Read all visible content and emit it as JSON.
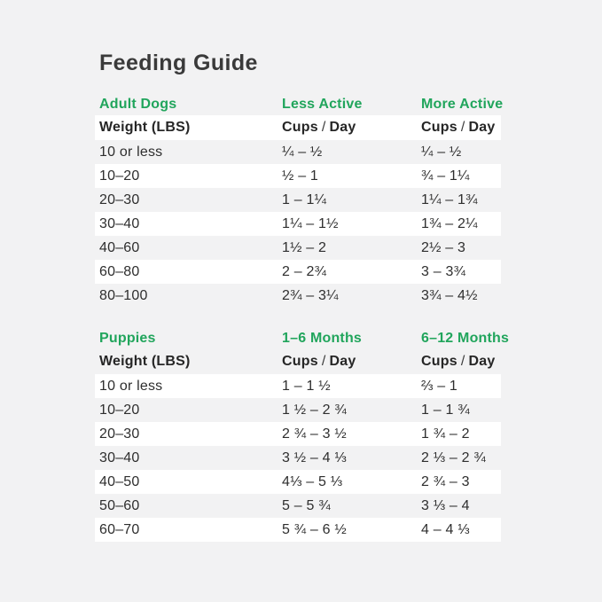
{
  "page": {
    "title": "Feeding Guide"
  },
  "colors": {
    "accent_green": "#21a55c",
    "title_text": "#3a3a3a",
    "body_text": "#2e2e2e",
    "page_bg": "#f2f2f3",
    "stripe_white": "#ffffff"
  },
  "tables": [
    {
      "category": "Adult Dogs",
      "col2_header": "Less Active",
      "col3_header": "More Active",
      "subheader": {
        "col1": "Weight (LBS)",
        "cups": "Cups",
        "slash": "/",
        "day": "Day"
      },
      "rows": [
        {
          "weight": "10 or less",
          "col2": "¼ – ½",
          "col3": "¼ – ½"
        },
        {
          "weight": "10–20",
          "col2": "½ – 1",
          "col3": "¾ – 1¼"
        },
        {
          "weight": "20–30",
          "col2": "1 – 1¼",
          "col3": "1¼ – 1¾"
        },
        {
          "weight": "30–40",
          "col2": "1¼ – 1½",
          "col3": "1¾ – 2¼"
        },
        {
          "weight": "40–60",
          "col2": "1½ – 2",
          "col3": "2½ – 3"
        },
        {
          "weight": "60–80",
          "col2": "2 – 2¾",
          "col3": "3 – 3¾"
        },
        {
          "weight": "80–100",
          "col2": "2¾ – 3¼",
          "col3": "3¾ – 4½"
        }
      ]
    },
    {
      "category": "Puppies",
      "col2_header": "1–6 Months",
      "col3_header": "6–12 Months",
      "subheader": {
        "col1": "Weight (LBS)",
        "cups": "Cups",
        "slash": "/",
        "day": "Day"
      },
      "rows": [
        {
          "weight": "10 or less",
          "col2": "1 – 1 ½",
          "col3": "⅔ – 1"
        },
        {
          "weight": "10–20",
          "col2": "1 ½ – 2 ¾",
          "col3": "1 – 1 ¾"
        },
        {
          "weight": "20–30",
          "col2": "2 ¾ – 3 ½",
          "col3": "1 ¾ – 2"
        },
        {
          "weight": "30–40",
          "col2": "3 ½ – 4 ⅓",
          "col3": "2 ⅓ – 2 ¾"
        },
        {
          "weight": "40–50",
          "col2": "4⅓ – 5 ⅓",
          "col3": "2 ¾ – 3"
        },
        {
          "weight": "50–60",
          "col2": "5 – 5 ¾",
          "col3": "3 ⅓ – 4"
        },
        {
          "weight": "60–70",
          "col2": "5 ¾ – 6 ½",
          "col3": "4 – 4 ⅓"
        }
      ]
    }
  ]
}
